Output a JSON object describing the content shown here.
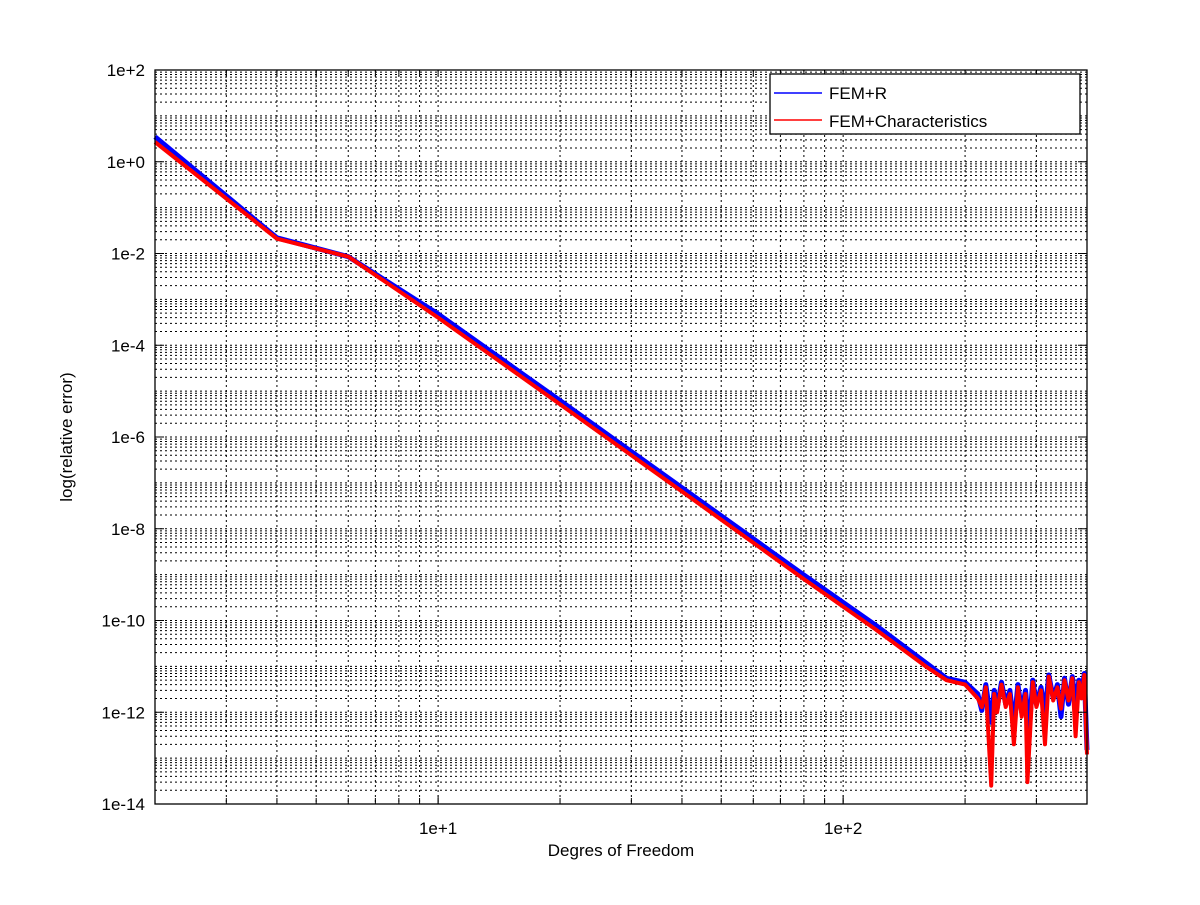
{
  "chart_data": {
    "type": "line",
    "title": "",
    "xlabel": "Degres of Freedom",
    "ylabel": "log(relative error)",
    "x_scale": "log",
    "y_scale": "log",
    "xlim": [
      2,
      400
    ],
    "ylim": [
      1e-14,
      100
    ],
    "x_ticks": [
      {
        "value": 10,
        "label": "1e+1"
      },
      {
        "value": 100,
        "label": "1e+2"
      }
    ],
    "y_ticks": [
      {
        "value": 1e-14,
        "label": "1e-14"
      },
      {
        "value": 1e-12,
        "label": "1e-12"
      },
      {
        "value": 1e-10,
        "label": "1e-10"
      },
      {
        "value": 1e-08,
        "label": "1e-8"
      },
      {
        "value": 1e-06,
        "label": "1e-6"
      },
      {
        "value": 0.0001,
        "label": "1e-4"
      },
      {
        "value": 0.01,
        "label": "1e-2"
      },
      {
        "value": 1,
        "label": "1e+0"
      },
      {
        "value": 100,
        "label": "1e+2"
      }
    ],
    "grid": true,
    "legend_position": "top-right",
    "series": [
      {
        "name": "FEM+R",
        "color": "#0000ff",
        "points": [
          [
            2,
            3.5
          ],
          [
            4,
            0.022
          ],
          [
            6,
            0.0085
          ],
          [
            10,
            0.00048
          ],
          [
            20,
            6.2e-06
          ],
          [
            40,
            7.8e-08
          ],
          [
            80,
            9.8e-10
          ],
          [
            120,
            8e-11
          ],
          [
            160,
            1.2e-11
          ],
          [
            180,
            5.5e-12
          ],
          [
            200,
            4.5e-12
          ],
          [
            215,
            2.5e-12
          ],
          [
            220,
            1.1e-12
          ],
          [
            225,
            4e-12
          ],
          [
            232,
            6e-13
          ],
          [
            236,
            3e-12
          ],
          [
            240,
            1.2e-12
          ],
          [
            246,
            4.5e-12
          ],
          [
            252,
            1.5e-12
          ],
          [
            258,
            3e-12
          ],
          [
            264,
            5e-13
          ],
          [
            270,
            4e-12
          ],
          [
            276,
            1e-12
          ],
          [
            282,
            3e-12
          ],
          [
            288,
            4e-13
          ],
          [
            294,
            5e-12
          ],
          [
            300,
            1.5e-12
          ],
          [
            308,
            3.5e-12
          ],
          [
            315,
            1e-12
          ],
          [
            322,
            6.5e-12
          ],
          [
            330,
            2e-12
          ],
          [
            338,
            4e-12
          ],
          [
            345,
            8e-13
          ],
          [
            352,
            5.5e-12
          ],
          [
            360,
            1.5e-12
          ],
          [
            368,
            6e-12
          ],
          [
            375,
            1.5e-12
          ],
          [
            382,
            5e-12
          ],
          [
            388,
            2.5e-12
          ],
          [
            394,
            7e-12
          ],
          [
            400,
            1.5e-13
          ]
        ]
      },
      {
        "name": "FEM+Characteristics",
        "color": "#ff0000",
        "points": [
          [
            2,
            2.7
          ],
          [
            4,
            0.021
          ],
          [
            6,
            0.0085
          ],
          [
            10,
            0.0004
          ],
          [
            20,
            5.2e-06
          ],
          [
            40,
            6.5e-08
          ],
          [
            80,
            8e-10
          ],
          [
            120,
            6.5e-11
          ],
          [
            160,
            1e-11
          ],
          [
            180,
            5e-12
          ],
          [
            200,
            4e-12
          ],
          [
            215,
            2e-12
          ],
          [
            220,
            1.3e-12
          ],
          [
            225,
            3.5e-12
          ],
          [
            232,
            2.5e-14
          ],
          [
            236,
            2.5e-12
          ],
          [
            240,
            1e-12
          ],
          [
            246,
            4e-12
          ],
          [
            252,
            1.3e-12
          ],
          [
            258,
            2.5e-12
          ],
          [
            264,
            2e-13
          ],
          [
            270,
            3.5e-12
          ],
          [
            276,
            8e-13
          ],
          [
            282,
            2.5e-12
          ],
          [
            285,
            3e-14
          ],
          [
            294,
            4.5e-12
          ],
          [
            300,
            1.3e-12
          ],
          [
            308,
            3e-12
          ],
          [
            315,
            2e-13
          ],
          [
            322,
            6e-12
          ],
          [
            330,
            1.8e-12
          ],
          [
            338,
            3.5e-12
          ],
          [
            345,
            1.2e-12
          ],
          [
            352,
            5e-12
          ],
          [
            360,
            1.8e-12
          ],
          [
            368,
            5.5e-12
          ],
          [
            375,
            3e-13
          ],
          [
            382,
            4.5e-12
          ],
          [
            388,
            2e-12
          ],
          [
            394,
            6.5e-12
          ],
          [
            400,
            1.2e-13
          ]
        ]
      }
    ]
  }
}
